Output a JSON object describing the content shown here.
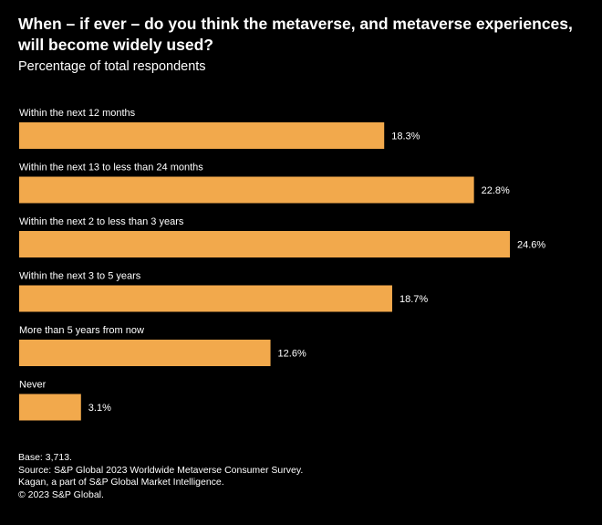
{
  "header": {
    "title": "When – if ever – do you think the metaverse, and metaverse experiences, will become widely used?",
    "subtitle": "Percentage of total respondents"
  },
  "chart_data": {
    "type": "bar",
    "orientation": "horizontal",
    "title": "When – if ever – do you think the metaverse, and metaverse experiences, will become widely used?",
    "subtitle": "Percentage of total respondents",
    "categories": [
      "Within the next 12 months",
      "Within the next 13 to less than 24 months",
      "Within the next 2 to less than 3 years",
      "Within the next 3 to 5 years",
      "More than 5 years from now",
      "Never"
    ],
    "values": [
      18.3,
      22.8,
      24.6,
      18.7,
      12.6,
      3.1
    ],
    "value_labels": [
      "18.3%",
      "22.8%",
      "24.6%",
      "18.7%",
      "12.6%",
      "3.1%"
    ],
    "unit": "%",
    "xlim": [
      0,
      24.6
    ],
    "bar_color": "#F2A94C",
    "background_color": "#000000",
    "text_color": "#FFFFFF"
  },
  "footer": {
    "base": "Base: 3,713.",
    "source": "Source: S&P Global 2023 Worldwide Metaverse Consumer Survey.",
    "kagan": "Kagan, a part of S&P Global Market Intelligence.",
    "copyright": "© 2023 S&P Global."
  }
}
